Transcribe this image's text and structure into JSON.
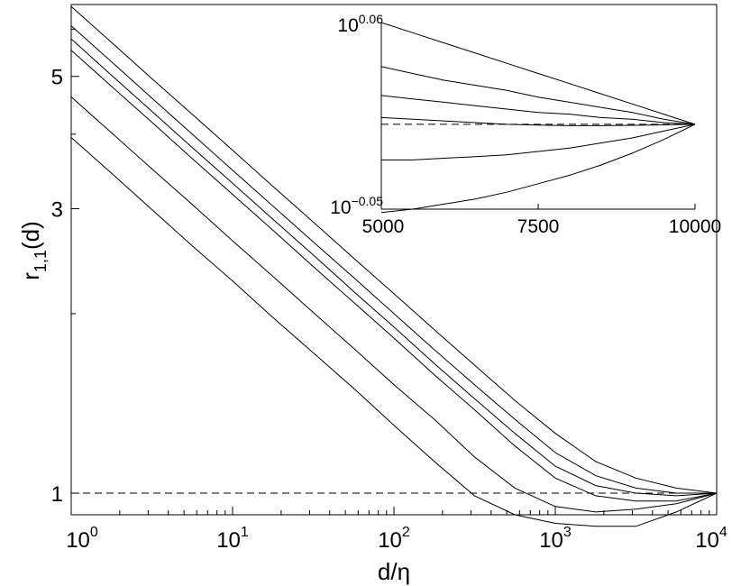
{
  "chart_data": [
    {
      "type": "line",
      "xscale": "log",
      "yscale": "log",
      "xlabel": "d/η",
      "ylabel_main": "r",
      "ylabel_sub": "1,1",
      "ylabel_tail": "(d)",
      "xlim": [
        1,
        10000
      ],
      "ylim": [
        0.92,
        6.6
      ],
      "x_ticks": [
        {
          "value": 1,
          "base": "10",
          "exp": "0"
        },
        {
          "value": 10,
          "base": "10",
          "exp": "1"
        },
        {
          "value": 100,
          "base": "10",
          "exp": "2"
        },
        {
          "value": 1000,
          "base": "10",
          "exp": "3"
        },
        {
          "value": 10000,
          "base": "10",
          "exp": "4"
        }
      ],
      "y_ticks": [
        {
          "value": 1,
          "label": "1"
        },
        {
          "value": 3,
          "label": "3"
        },
        {
          "value": 5,
          "label": "5"
        }
      ],
      "reference_line": {
        "y": 1,
        "style": "dashed"
      },
      "x": [
        1,
        1.78,
        3.16,
        5.62,
        10,
        17.8,
        31.6,
        56.2,
        100,
        178,
        316,
        562,
        1000,
        1780,
        3160,
        5620,
        10000
      ],
      "series": [
        {
          "values": [
            6.55,
            5.7,
            4.96,
            4.32,
            3.76,
            3.27,
            2.85,
            2.48,
            2.16,
            1.88,
            1.64,
            1.43,
            1.26,
            1.13,
            1.06,
            1.02,
            1.0
          ]
        },
        {
          "values": [
            6.08,
            5.29,
            4.6,
            4.0,
            3.48,
            3.03,
            2.64,
            2.3,
            2.0,
            1.74,
            1.52,
            1.33,
            1.17,
            1.07,
            1.02,
            1.0,
            1.0
          ]
        },
        {
          "values": [
            5.78,
            5.02,
            4.37,
            3.8,
            3.31,
            2.88,
            2.51,
            2.18,
            1.9,
            1.65,
            1.44,
            1.26,
            1.11,
            1.03,
            1.0,
            0.99,
            1.0
          ]
        },
        {
          "values": [
            5.53,
            4.81,
            4.19,
            3.64,
            3.17,
            2.76,
            2.4,
            2.09,
            1.82,
            1.58,
            1.38,
            1.2,
            1.06,
            0.99,
            0.97,
            0.97,
            1.0
          ]
        },
        {
          "values": [
            4.62,
            4.02,
            3.5,
            3.05,
            2.65,
            2.31,
            2.01,
            1.75,
            1.52,
            1.33,
            1.15,
            1.02,
            0.95,
            0.93,
            0.94,
            0.96,
            1.0
          ]
        },
        {
          "values": [
            3.95,
            3.44,
            2.99,
            2.6,
            2.27,
            1.97,
            1.72,
            1.5,
            1.3,
            1.13,
            0.99,
            0.92,
            0.89,
            0.88,
            0.88,
            0.93,
            1.0
          ]
        }
      ]
    },
    {
      "type": "line",
      "role": "inset",
      "yscale": "log",
      "xlim": [
        5000,
        10000
      ],
      "ylim": [
        -0.05,
        0.06
      ],
      "y_is_log10_exponent": true,
      "x_ticks": [
        {
          "value": 5000,
          "label": "5000"
        },
        {
          "value": 7500,
          "label": "7500"
        },
        {
          "value": 10000,
          "label": "10000"
        }
      ],
      "y_ticks": [
        {
          "value": -0.05,
          "base": "10",
          "exp": "−0.05"
        },
        {
          "value": 0.06,
          "base": "10",
          "exp": "0.06"
        }
      ],
      "reference_line": {
        "y": 0,
        "style": "dashed"
      },
      "x": [
        5000,
        5500,
        6000,
        6500,
        7000,
        7500,
        8000,
        8500,
        9000,
        9500,
        10000
      ],
      "series": [
        {
          "values": [
            0.06,
            0.054,
            0.048,
            0.042,
            0.036,
            0.03,
            0.024,
            0.018,
            0.012,
            0.006,
            0.0
          ]
        },
        {
          "values": [
            0.034,
            0.03,
            0.026,
            0.023,
            0.02,
            0.016,
            0.013,
            0.01,
            0.007,
            0.003,
            0.0
          ]
        },
        {
          "values": [
            0.017,
            0.015,
            0.013,
            0.011,
            0.009,
            0.007,
            0.006,
            0.004,
            0.003,
            0.001,
            0.0
          ]
        },
        {
          "values": [
            0.004,
            0.003,
            0.002,
            0.001,
            0.0,
            -0.0005,
            -0.0008,
            -0.0008,
            -0.0006,
            -0.0003,
            0.0
          ]
        },
        {
          "values": [
            -0.021,
            -0.021,
            -0.02,
            -0.019,
            -0.018,
            -0.016,
            -0.014,
            -0.011,
            -0.008,
            -0.004,
            0.0
          ]
        },
        {
          "values": [
            -0.052,
            -0.05,
            -0.047,
            -0.044,
            -0.04,
            -0.035,
            -0.03,
            -0.024,
            -0.017,
            -0.009,
            0.0
          ]
        }
      ]
    }
  ]
}
